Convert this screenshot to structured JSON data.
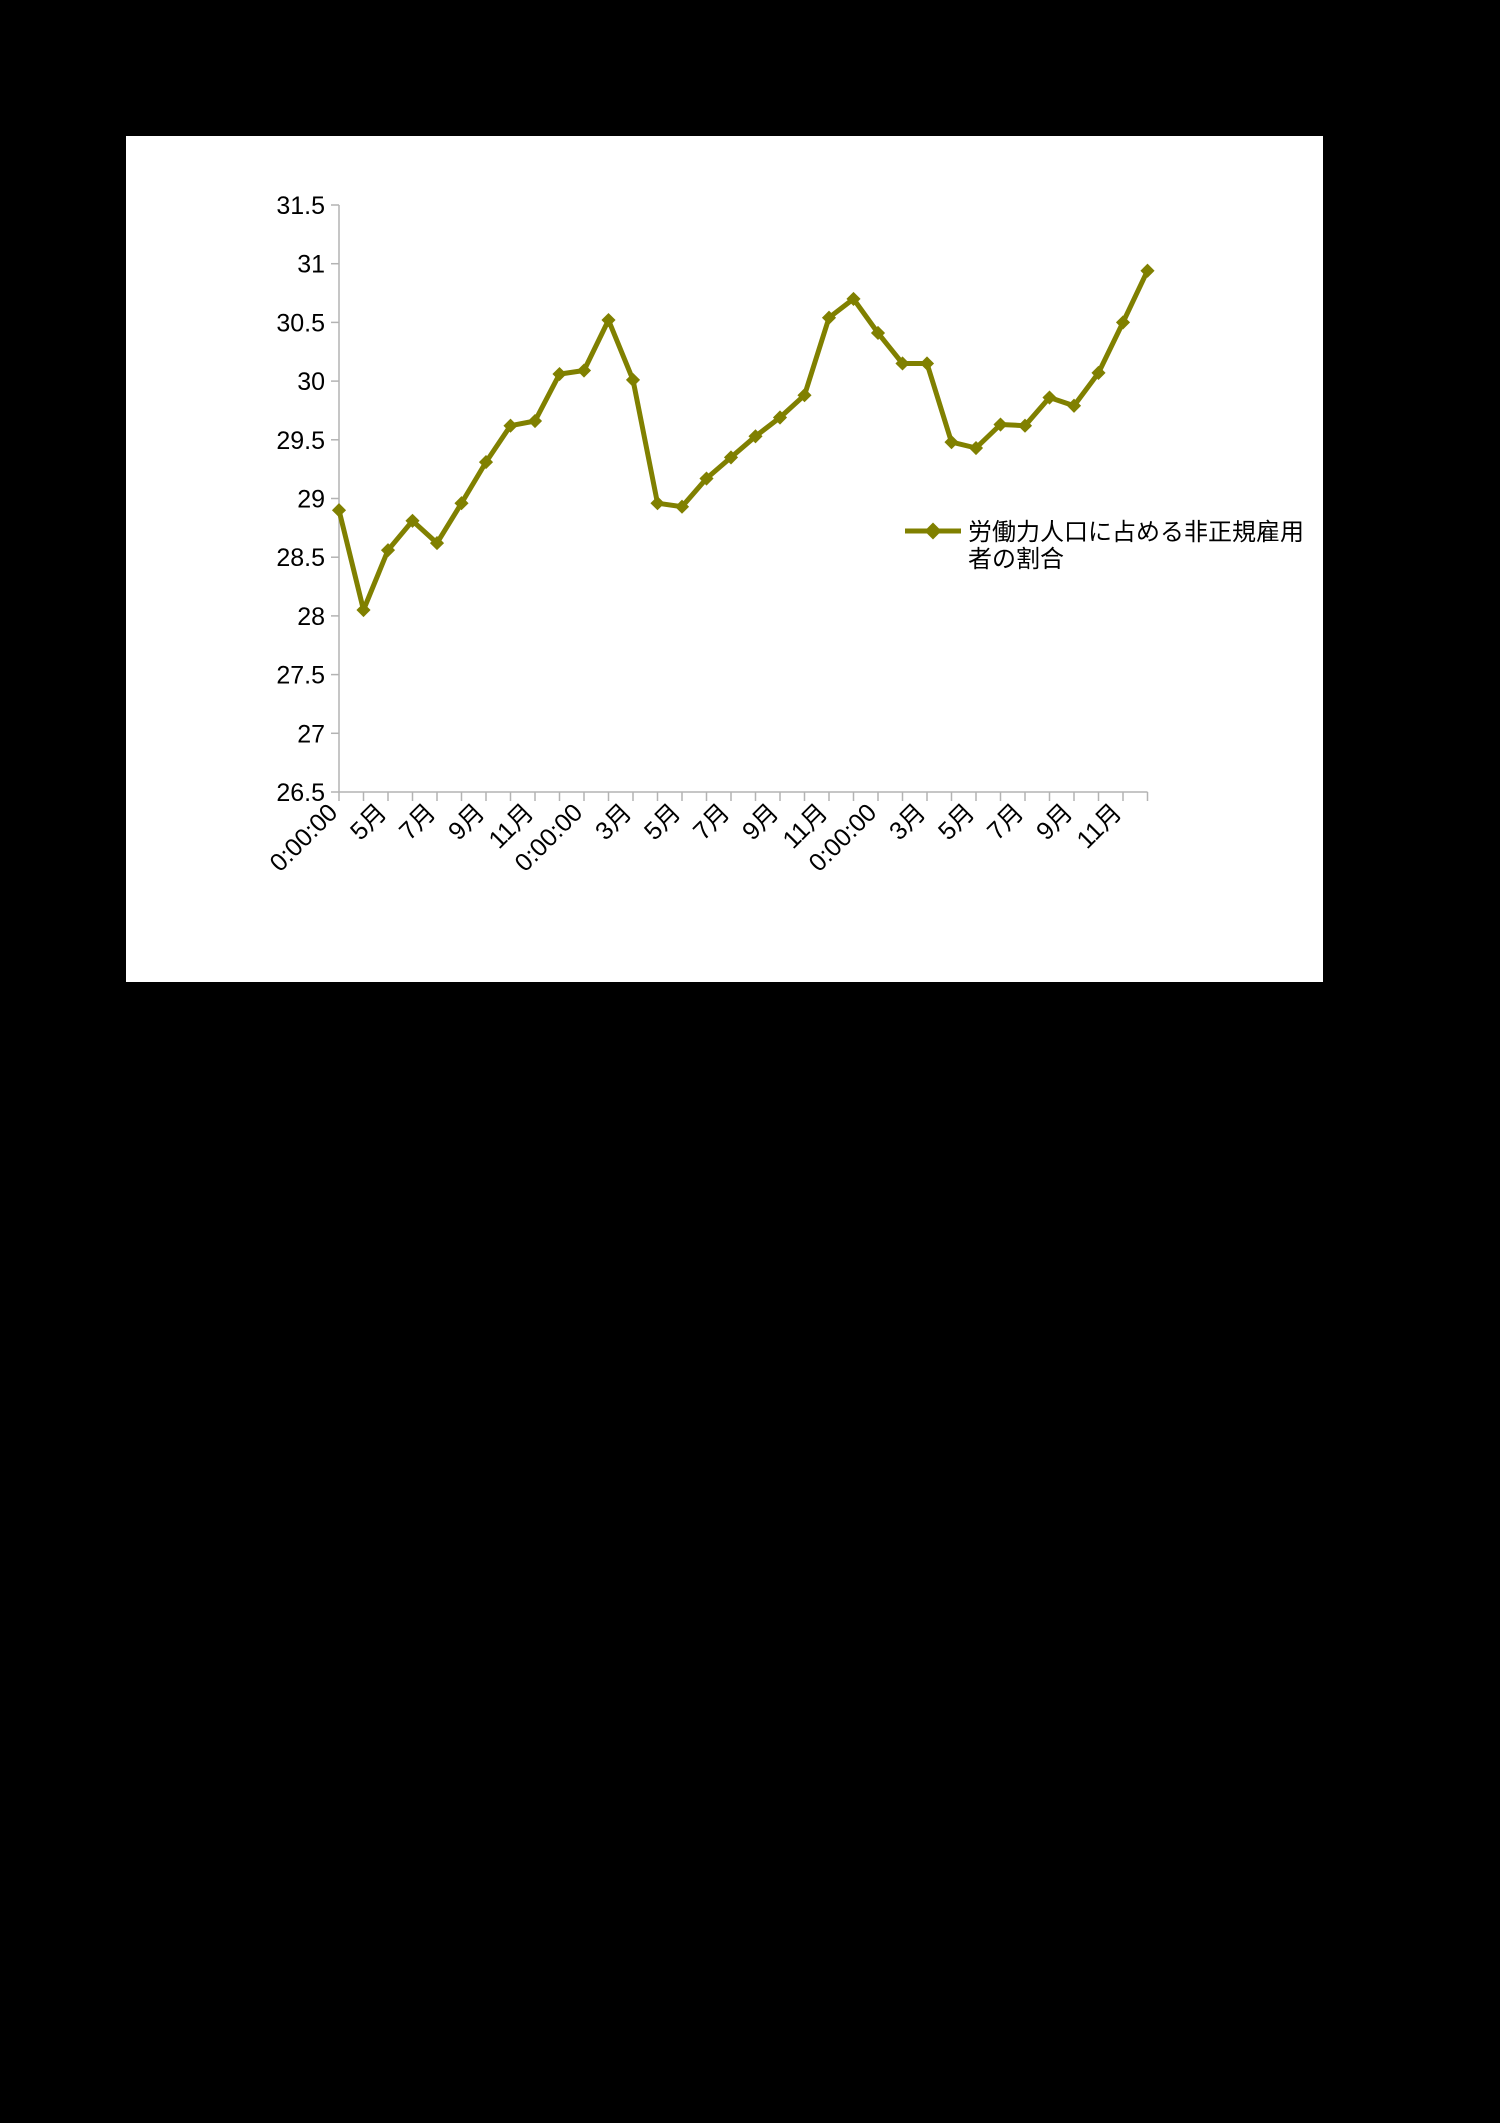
{
  "chart_data": {
    "type": "line",
    "title": "",
    "xlabel": "",
    "ylabel": "",
    "ylim": [
      26.5,
      31.5
    ],
    "ytick_step": 0.5,
    "yticks": [
      "26.5",
      "27",
      "27.5",
      "28",
      "28.5",
      "29",
      "29.5",
      "30",
      "30.5",
      "31",
      "31.5"
    ],
    "x_tick_labels": [
      "0:00:00",
      "5月",
      "7月",
      "9月",
      "11月",
      "0:00:00",
      "3月",
      "5月",
      "7月",
      "9月",
      "11月",
      "0:00:00",
      "3月",
      "5月",
      "7月",
      "9月",
      "11月"
    ],
    "x_tick_label_positions": [
      0,
      2,
      4,
      6,
      8,
      10,
      12,
      14,
      16,
      18,
      20,
      22,
      24,
      26,
      28,
      30,
      32
    ],
    "grid": false,
    "legend_position": "right",
    "series": [
      {
        "name": "労働力人口に占める非正規雇用者の割合",
        "color": "#808000",
        "values": [
          28.9,
          28.05,
          28.56,
          28.81,
          28.62,
          28.96,
          29.31,
          29.62,
          29.66,
          30.06,
          30.09,
          30.52,
          30.01,
          28.96,
          28.93,
          29.17,
          29.35,
          29.53,
          29.69,
          29.88,
          30.54,
          30.7,
          30.41,
          30.15,
          30.15,
          29.48,
          29.43,
          29.63,
          29.62,
          29.86,
          29.79,
          30.07,
          30.5,
          30.94
        ]
      }
    ]
  },
  "legend": {
    "line1": "労働力人口に占める非正規雇用",
    "line2": "者の割合"
  }
}
